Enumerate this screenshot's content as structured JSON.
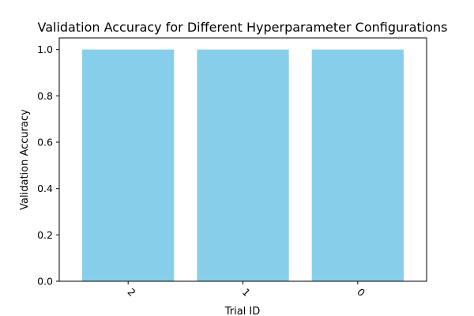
{
  "chart_data": {
    "type": "bar",
    "title": "Validation Accuracy for Different Hyperparameter Configurations",
    "xlabel": "Trial ID",
    "ylabel": "Validation Accuracy",
    "categories": [
      "2",
      "1",
      "0"
    ],
    "values": [
      1.0,
      1.0,
      1.0
    ],
    "ylim": [
      0,
      1.05
    ],
    "yticks": [
      0.0,
      0.2,
      0.4,
      0.6,
      0.8,
      1.0
    ],
    "ytick_labels": [
      "0.0",
      "0.2",
      "0.4",
      "0.6",
      "0.8",
      "1.0"
    ],
    "xtick_rotation": 45,
    "bar_color": "#87CEEB",
    "grid": false,
    "legend": "none"
  }
}
